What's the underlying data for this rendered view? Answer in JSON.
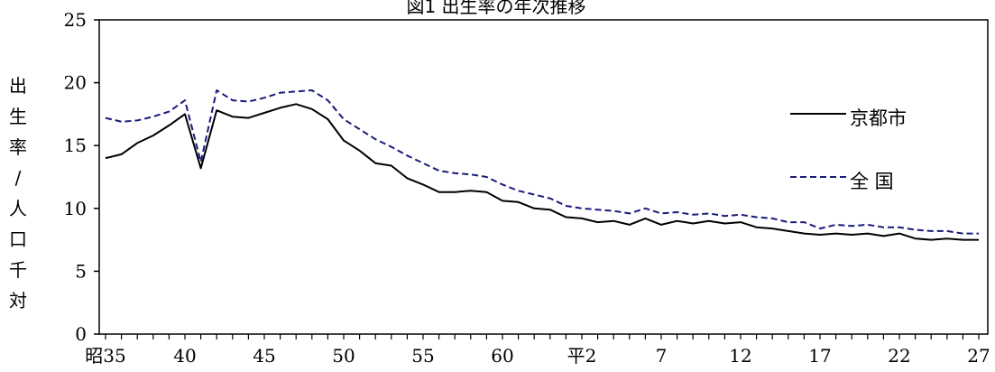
{
  "chart_data": {
    "type": "line",
    "title": "図1 出生率の年次推移",
    "ylabel_chars": [
      "出",
      "生",
      "率",
      "/",
      "人",
      "口",
      "千",
      "対"
    ],
    "ylim": [
      0,
      25
    ],
    "yticks": [
      0,
      5,
      10,
      15,
      20,
      25
    ],
    "x_start_label": "昭35",
    "x_tick_labels": [
      "昭35",
      "40",
      "45",
      "50",
      "55",
      "60",
      "平2",
      "7",
      "12",
      "17",
      "22",
      "27"
    ],
    "grid": false,
    "legend": "right",
    "series": [
      {
        "name": "京都市",
        "style": "solid",
        "color": "#000000",
        "values": [
          14.0,
          14.3,
          15.2,
          15.8,
          16.6,
          17.5,
          13.2,
          17.8,
          17.3,
          17.2,
          17.6,
          18.0,
          18.3,
          17.9,
          17.1,
          15.4,
          14.6,
          13.6,
          13.4,
          12.4,
          11.9,
          11.3,
          11.3,
          11.4,
          11.3,
          10.6,
          10.5,
          10.0,
          9.9,
          9.3,
          9.2,
          8.9,
          9.0,
          8.7,
          9.2,
          8.7,
          9.0,
          8.8,
          9.0,
          8.8,
          8.9,
          8.5,
          8.4,
          8.2,
          8.0,
          7.9,
          8.0,
          7.9,
          8.0,
          7.8,
          8.0,
          7.6,
          7.5,
          7.6,
          7.5,
          7.5
        ]
      },
      {
        "name": "全 国",
        "style": "dashed",
        "color": "#1a1a7a",
        "values": [
          17.2,
          16.9,
          17.0,
          17.3,
          17.7,
          18.6,
          13.7,
          19.4,
          18.6,
          18.5,
          18.8,
          19.2,
          19.3,
          19.4,
          18.6,
          17.1,
          16.3,
          15.5,
          14.9,
          14.2,
          13.6,
          13.0,
          12.8,
          12.7,
          12.5,
          11.9,
          11.4,
          11.1,
          10.8,
          10.2,
          10.0,
          9.9,
          9.8,
          9.6,
          10.0,
          9.6,
          9.7,
          9.5,
          9.6,
          9.4,
          9.5,
          9.3,
          9.2,
          8.9,
          8.9,
          8.4,
          8.7,
          8.6,
          8.7,
          8.5,
          8.5,
          8.3,
          8.2,
          8.2,
          8.0,
          8.0
        ]
      }
    ]
  }
}
